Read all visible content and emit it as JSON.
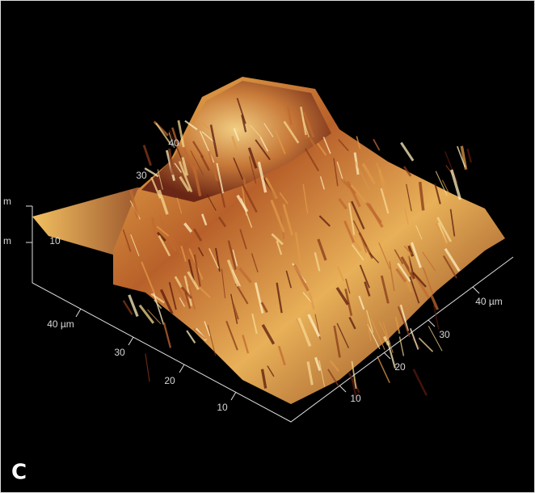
{
  "panel_label": "C",
  "left_axis": {
    "labels": [
      "40 µm",
      "30",
      "20",
      "10"
    ]
  },
  "right_axis": {
    "labels": [
      "10",
      "20",
      "30",
      "40 µm"
    ]
  },
  "z_axis": {
    "labels": [
      "m",
      "m",
      "10"
    ]
  },
  "surface_labels": [
    "40",
    "30"
  ]
}
